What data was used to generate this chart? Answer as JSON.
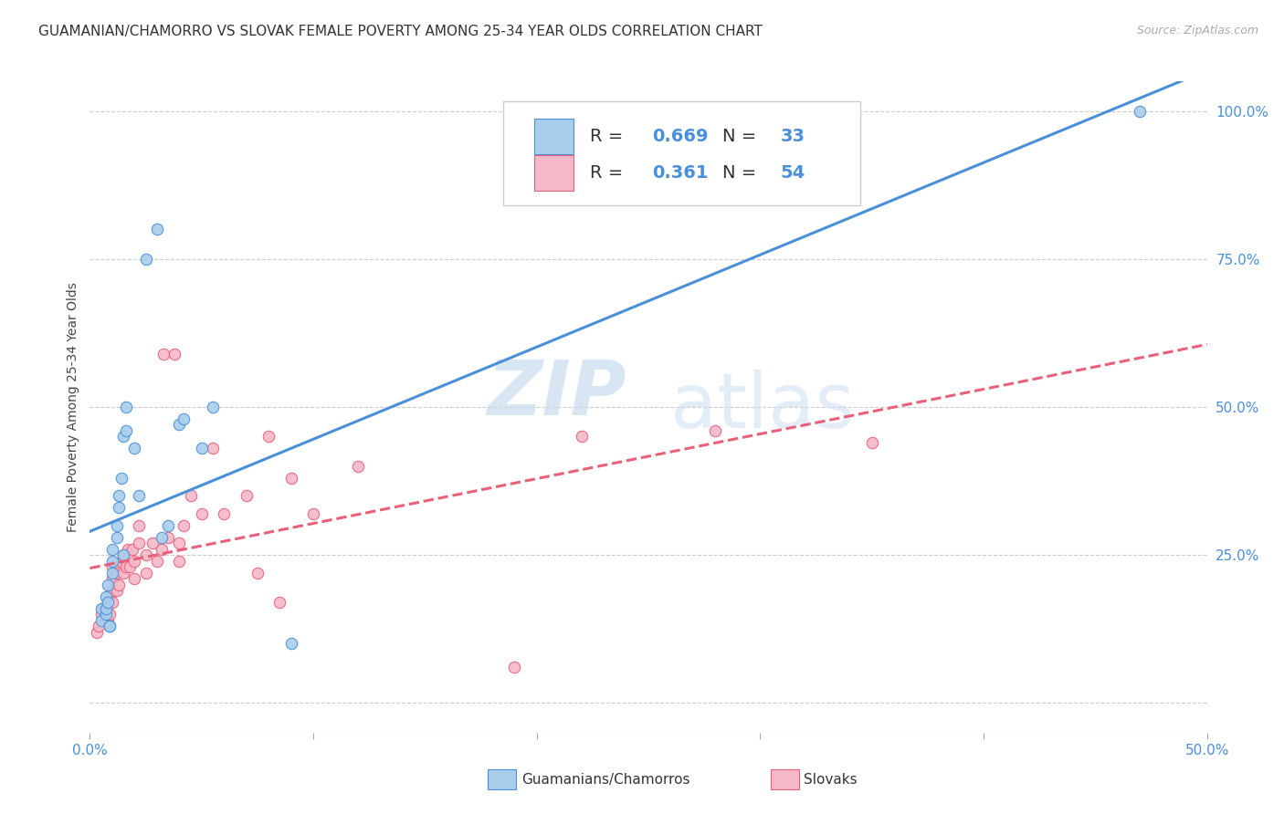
{
  "title": "GUAMANIAN/CHAMORRO VS SLOVAK FEMALE POVERTY AMONG 25-34 YEAR OLDS CORRELATION CHART",
  "source": "Source: ZipAtlas.com",
  "ylabel": "Female Poverty Among 25-34 Year Olds",
  "xlim": [
    0.0,
    0.5
  ],
  "ylim": [
    -0.05,
    1.05
  ],
  "xticks": [
    0.0,
    0.1,
    0.2,
    0.3,
    0.4,
    0.5
  ],
  "xticklabels": [
    "0.0%",
    "",
    "",
    "",
    "",
    "50.0%"
  ],
  "yticks_right": [
    0.0,
    0.25,
    0.5,
    0.75,
    1.0
  ],
  "yticklabels_right": [
    "",
    "25.0%",
    "50.0%",
    "75.0%",
    "100.0%"
  ],
  "color_guam": "#A8CEEC",
  "color_slovak": "#F5B8C8",
  "color_line_guam": "#4A90D9",
  "color_line_slovak": "#E8607A",
  "legend_R_guam": "0.669",
  "legend_N_guam": "33",
  "legend_R_slovak": "0.361",
  "legend_N_slovak": "54",
  "guam_x": [
    0.005,
    0.005,
    0.007,
    0.007,
    0.007,
    0.008,
    0.008,
    0.009,
    0.009,
    0.01,
    0.01,
    0.01,
    0.012,
    0.012,
    0.013,
    0.013,
    0.014,
    0.015,
    0.015,
    0.016,
    0.016,
    0.02,
    0.022,
    0.025,
    0.03,
    0.032,
    0.035,
    0.04,
    0.042,
    0.05,
    0.055,
    0.09,
    0.47
  ],
  "guam_y": [
    0.14,
    0.16,
    0.15,
    0.16,
    0.18,
    0.17,
    0.2,
    0.13,
    0.13,
    0.22,
    0.24,
    0.26,
    0.28,
    0.3,
    0.33,
    0.35,
    0.38,
    0.25,
    0.45,
    0.5,
    0.46,
    0.43,
    0.35,
    0.75,
    0.8,
    0.28,
    0.3,
    0.47,
    0.48,
    0.43,
    0.5,
    0.1,
    1.0
  ],
  "slovak_x": [
    0.003,
    0.004,
    0.005,
    0.006,
    0.007,
    0.007,
    0.008,
    0.008,
    0.009,
    0.009,
    0.01,
    0.01,
    0.01,
    0.01,
    0.012,
    0.012,
    0.013,
    0.014,
    0.015,
    0.015,
    0.016,
    0.017,
    0.018,
    0.019,
    0.02,
    0.02,
    0.022,
    0.022,
    0.025,
    0.025,
    0.028,
    0.03,
    0.032,
    0.033,
    0.035,
    0.038,
    0.04,
    0.04,
    0.042,
    0.045,
    0.05,
    0.055,
    0.06,
    0.07,
    0.075,
    0.08,
    0.085,
    0.09,
    0.1,
    0.12,
    0.19,
    0.22,
    0.28,
    0.35
  ],
  "slovak_y": [
    0.12,
    0.13,
    0.15,
    0.16,
    0.14,
    0.16,
    0.14,
    0.17,
    0.15,
    0.18,
    0.17,
    0.19,
    0.21,
    0.23,
    0.19,
    0.22,
    0.2,
    0.24,
    0.22,
    0.25,
    0.23,
    0.26,
    0.23,
    0.26,
    0.21,
    0.24,
    0.27,
    0.3,
    0.22,
    0.25,
    0.27,
    0.24,
    0.26,
    0.59,
    0.28,
    0.59,
    0.24,
    0.27,
    0.3,
    0.35,
    0.32,
    0.43,
    0.32,
    0.35,
    0.22,
    0.45,
    0.17,
    0.38,
    0.32,
    0.4,
    0.06,
    0.45,
    0.46,
    0.44
  ],
  "background_color": "#ffffff",
  "grid_color": "#cccccc",
  "watermark_zip": "ZIP",
  "watermark_atlas": "atlas",
  "title_fontsize": 11,
  "axis_label_fontsize": 10,
  "tick_fontsize": 11,
  "legend_fontsize": 14
}
